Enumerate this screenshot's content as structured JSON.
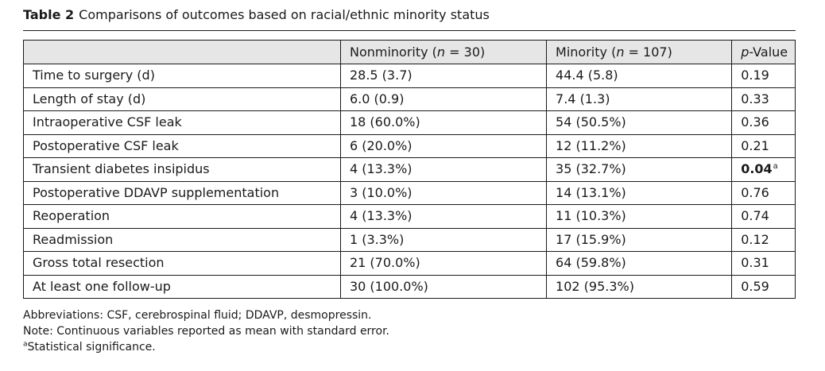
{
  "caption": {
    "label": "Table 2",
    "title": "Comparisons of outcomes based on racial/ethnic minority status"
  },
  "header": {
    "col_label": "",
    "col_nonminority": {
      "name": "Nonminority (",
      "n_italic": "n",
      "n_value": " = 30)"
    },
    "col_minority": {
      "name": "Minority (",
      "n_italic": "n",
      "n_value": " = 107)"
    },
    "col_p": {
      "italic": "p",
      "rest": "-Value"
    }
  },
  "rows": [
    {
      "label": "Time to surgery (d)",
      "nonminority": "28.5 (3.7)",
      "minority": "44.4 (5.8)",
      "p": "0.19",
      "p_bold": false,
      "p_sup": ""
    },
    {
      "label": "Length of stay (d)",
      "nonminority": "6.0 (0.9)",
      "minority": "7.4 (1.3)",
      "p": "0.33",
      "p_bold": false,
      "p_sup": ""
    },
    {
      "label": "Intraoperative CSF leak",
      "nonminority": "18 (60.0%)",
      "minority": "54 (50.5%)",
      "p": "0.36",
      "p_bold": false,
      "p_sup": ""
    },
    {
      "label": "Postoperative CSF leak",
      "nonminority": "6 (20.0%)",
      "minority": "12 (11.2%)",
      "p": "0.21",
      "p_bold": false,
      "p_sup": ""
    },
    {
      "label": "Transient diabetes insipidus",
      "nonminority": "4 (13.3%)",
      "minority": "35 (32.7%)",
      "p": "0.04",
      "p_bold": true,
      "p_sup": "a"
    },
    {
      "label": "Postoperative DDAVP supplementation",
      "nonminority": "3 (10.0%)",
      "minority": "14 (13.1%)",
      "p": "0.76",
      "p_bold": false,
      "p_sup": ""
    },
    {
      "label": "Reoperation",
      "nonminority": "4 (13.3%)",
      "minority": "11 (10.3%)",
      "p": "0.74",
      "p_bold": false,
      "p_sup": ""
    },
    {
      "label": "Readmission",
      "nonminority": "1 (3.3%)",
      "minority": "17 (15.9%)",
      "p": "0.12",
      "p_bold": false,
      "p_sup": ""
    },
    {
      "label": "Gross total resection",
      "nonminority": "21 (70.0%)",
      "minority": "64 (59.8%)",
      "p": "0.31",
      "p_bold": false,
      "p_sup": ""
    },
    {
      "label": "At least one follow-up",
      "nonminority": "30 (100.0%)",
      "minority": "102 (95.3%)",
      "p": "0.59",
      "p_bold": false,
      "p_sup": ""
    }
  ],
  "footnotes": {
    "abbreviations": "Abbreviations: CSF, cerebrospinal fluid; DDAVP, desmopressin.",
    "note": "Note: Continuous variables reported as mean with standard error.",
    "sig_mark": "a",
    "sig_text": "Statistical significance."
  }
}
